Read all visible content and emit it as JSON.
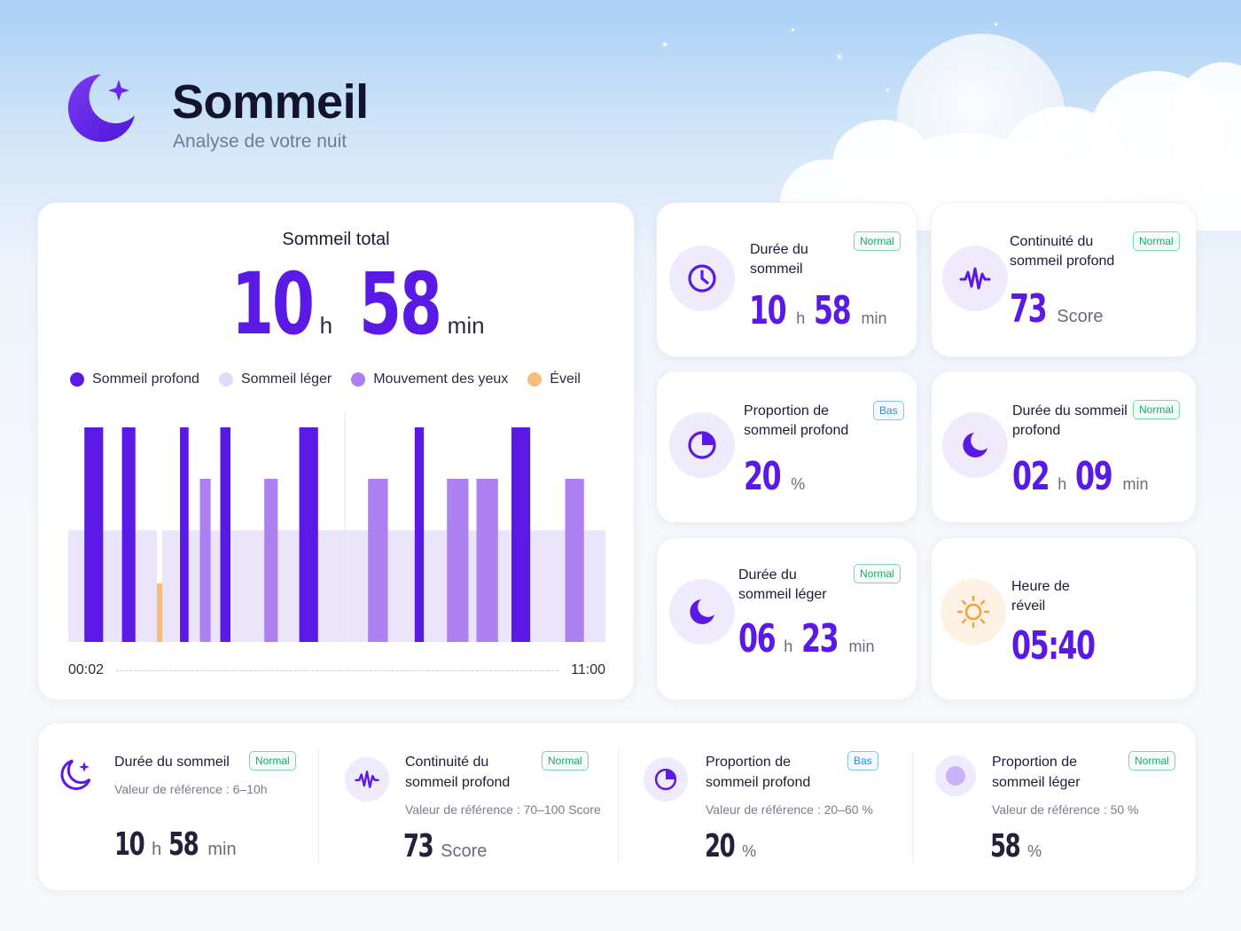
{
  "header": {
    "title": "Sommeil",
    "subtitle": "Analyse de votre nuit",
    "icon": "moon-star-icon"
  },
  "colors": {
    "accent": "#5b19e6",
    "deep_sleep": "#5b19e6",
    "light_sleep": "#e3d9fb",
    "rem": "#ad80f0",
    "awake": "#f5bf7a",
    "badge_normal": "#1ea672",
    "badge_low": "#2c8ee6"
  },
  "total": {
    "title": "Sommeil total",
    "hours": "10",
    "hours_unit": "h",
    "minutes": "58",
    "minutes_unit": "min"
  },
  "legend": [
    {
      "label": "Sommeil profond",
      "color": "#5b19e6"
    },
    {
      "label": "Sommeil léger",
      "color": "#e3d9fb"
    },
    {
      "label": "Mouvement des yeux",
      "color": "#ad80f0"
    },
    {
      "label": "Éveil",
      "color": "#f5bf7a"
    }
  ],
  "chart_data": {
    "type": "bar",
    "stages": [
      "Éveil",
      "Sommeil profond",
      "Sommeil léger",
      "Mouvement des yeux"
    ],
    "x_start": "00:02",
    "x_end": "11:00",
    "segments": [
      {
        "stage": "Sommeil profond",
        "start": 0.03,
        "end": 0.065
      },
      {
        "stage": "Sommeil profond",
        "start": 0.1,
        "end": 0.125
      },
      {
        "stage": "Éveil",
        "start": 0.165,
        "end": 0.175
      },
      {
        "stage": "Sommeil profond",
        "start": 0.208,
        "end": 0.224
      },
      {
        "stage": "Mouvement des yeux",
        "start": 0.245,
        "end": 0.265
      },
      {
        "stage": "Sommeil profond",
        "start": 0.283,
        "end": 0.302
      },
      {
        "stage": "Mouvement des yeux",
        "start": 0.365,
        "end": 0.39
      },
      {
        "stage": "Sommeil profond",
        "start": 0.43,
        "end": 0.465
      },
      {
        "stage": "Mouvement des yeux",
        "start": 0.558,
        "end": 0.595
      },
      {
        "stage": "Sommeil profond",
        "start": 0.645,
        "end": 0.662
      },
      {
        "stage": "Mouvement des yeux",
        "start": 0.705,
        "end": 0.745
      },
      {
        "stage": "Mouvement des yeux",
        "start": 0.76,
        "end": 0.8
      },
      {
        "stage": "Sommeil profond",
        "start": 0.825,
        "end": 0.86
      },
      {
        "stage": "Mouvement des yeux",
        "start": 0.925,
        "end": 0.96
      }
    ],
    "light_sleep_background": [
      {
        "start": 0.0,
        "end": 0.165
      },
      {
        "start": 0.175,
        "end": 1.0
      }
    ]
  },
  "stats": [
    {
      "label": "Durée du sommeil",
      "badge": "Normal",
      "h": "10",
      "h_unit": "h",
      "m": "58",
      "m_unit": "min",
      "icon": "clock-icon"
    },
    {
      "label": "Continuité du sommeil profond",
      "badge": "Normal",
      "value": "73",
      "unit": "Score",
      "icon": "wave-icon"
    },
    {
      "label": "Proportion de sommeil profond",
      "badge": "Bas",
      "value": "20",
      "unit": "%",
      "icon": "pie-chart-icon"
    },
    {
      "label": "Durée du sommeil profond",
      "badge": "Normal",
      "h": "02",
      "h_unit": "h",
      "m": "09",
      "m_unit": "min",
      "icon": "moon-icon"
    },
    {
      "label": "Durée du sommeil léger",
      "badge": "Normal",
      "h": "06",
      "h_unit": "h",
      "m": "23",
      "m_unit": "min",
      "icon": "moon-icon"
    },
    {
      "label": "Heure de réveil",
      "value": "05:40",
      "icon": "sun-icon"
    }
  ],
  "summary": [
    {
      "label": "Durée du sommeil",
      "badge": "Normal",
      "ref": "Valeur de référence : 6–10h",
      "h": "10",
      "h_unit": "h",
      "m": "58",
      "m_unit": "min",
      "icon": "moon-star-icon"
    },
    {
      "label": "Continuité du sommeil profond",
      "badge": "Normal",
      "ref": "Valeur de référence : 70–100 Score",
      "value": "73",
      "unit": "Score",
      "icon": "wave-icon"
    },
    {
      "label": "Proportion de sommeil profond",
      "badge": "Bas",
      "ref": "Valeur de référence : 20–60 %",
      "value": "20",
      "unit": "%",
      "icon": "pie-chart-icon"
    },
    {
      "label": "Proportion de sommeil léger",
      "badge": "Normal",
      "ref": "Valeur de référence : 50 %",
      "value": "58",
      "unit": "%",
      "icon": "circle-icon"
    }
  ]
}
